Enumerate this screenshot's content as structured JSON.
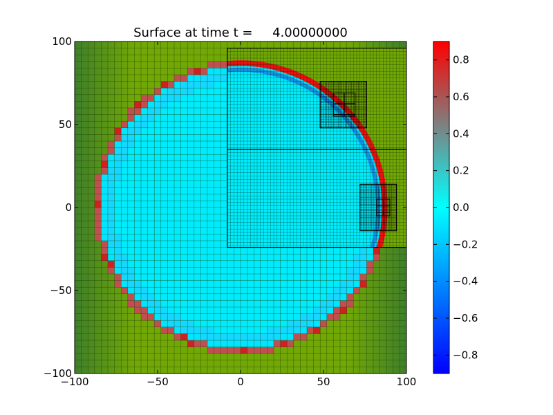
{
  "chart_data": {
    "type": "heatmap",
    "title": "Surface at time t =     4.00000000",
    "xlabel": "",
    "ylabel": "",
    "xlim": [
      -100,
      100
    ],
    "ylim": [
      -100,
      100
    ],
    "x_ticks": [
      -100,
      -50,
      0,
      50,
      100
    ],
    "y_ticks": [
      -100,
      -50,
      0,
      50,
      100
    ],
    "x_tick_labels": [
      "−100",
      "−50",
      "0",
      "50",
      "100"
    ],
    "y_tick_labels": [
      "−100",
      "−50",
      "0",
      "50",
      "100"
    ],
    "coarse_grid_cells": 50,
    "background_color": "#72a805",
    "wave": {
      "center": [
        0,
        0
      ],
      "outer_ring_radius": 88,
      "inner_surface_value": 0.0,
      "ring_value": 0.6
    },
    "refined_patches": [
      {
        "name": "level-2-patch-upper-right",
        "x": [
          -8,
          100
        ],
        "y": [
          35,
          96
        ],
        "cell_size": 2
      },
      {
        "name": "level-2-patch-lower-right",
        "x": [
          -8,
          100
        ],
        "y": [
          -24,
          35
        ],
        "cell_size": 2
      },
      {
        "name": "level-3-patch-upper",
        "x": [
          48,
          76
        ],
        "y": [
          48,
          76
        ],
        "cell_size": 1
      },
      {
        "name": "level-3-patch-right",
        "x": [
          72,
          94
        ],
        "y": [
          -14,
          14
        ],
        "cell_size": 1
      },
      {
        "name": "level-4-patch-upper",
        "x": [
          56,
          69
        ],
        "y": [
          55,
          69
        ],
        "cell_size": 6.5
      },
      {
        "name": "level-4-patch-right",
        "x": [
          82,
          90
        ],
        "y": [
          -5,
          5
        ],
        "cell_size": 4
      }
    ],
    "colorbar": {
      "range": [
        -0.9,
        0.9
      ],
      "ticks": [
        0.8,
        0.6,
        0.4,
        0.2,
        0.0,
        -0.2,
        -0.4,
        -0.6,
        -0.8
      ],
      "tick_labels": [
        "0.8",
        "0.6",
        "0.4",
        "0.2",
        "0.0",
        "−0.2",
        "−0.4",
        "−0.6",
        "−0.8"
      ],
      "colors": [
        "#0000ff",
        "#00ffff",
        "#ff0000"
      ]
    }
  }
}
